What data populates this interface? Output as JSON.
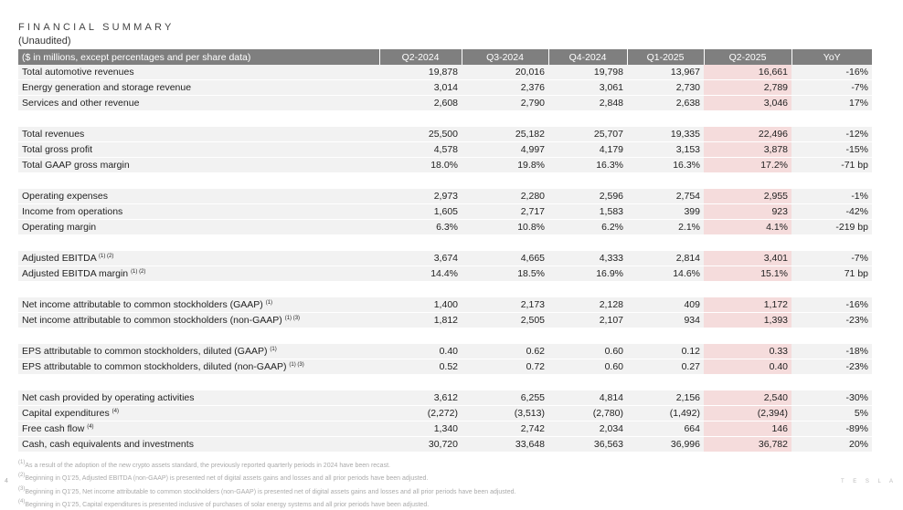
{
  "title": "FINANCIAL SUMMARY",
  "subtitle": "(Unaudited)",
  "headers": [
    "($ in millions, except percentages and per share data)",
    "Q2-2024",
    "Q3-2024",
    "Q4-2024",
    "Q1-2025",
    "Q2-2025",
    "YoY"
  ],
  "groups": [
    [
      {
        "label": "Total automotive revenues",
        "sup": "",
        "v": [
          "19,878",
          "20,016",
          "19,798",
          "13,967",
          "16,661",
          "-16%"
        ]
      },
      {
        "label": "Energy generation and storage revenue",
        "sup": "",
        "v": [
          "3,014",
          "2,376",
          "3,061",
          "2,730",
          "2,789",
          "-7%"
        ]
      },
      {
        "label": "Services and other revenue",
        "sup": "",
        "v": [
          "2,608",
          "2,790",
          "2,848",
          "2,638",
          "3,046",
          "17%"
        ]
      }
    ],
    [
      {
        "label": "Total revenues",
        "sup": "",
        "v": [
          "25,500",
          "25,182",
          "25,707",
          "19,335",
          "22,496",
          "-12%"
        ]
      },
      {
        "label": "Total gross profit",
        "sup": "",
        "v": [
          "4,578",
          "4,997",
          "4,179",
          "3,153",
          "3,878",
          "-15%"
        ]
      },
      {
        "label": "Total GAAP gross margin",
        "sup": "",
        "v": [
          "18.0%",
          "19.8%",
          "16.3%",
          "16.3%",
          "17.2%",
          "-71 bp"
        ]
      }
    ],
    [
      {
        "label": "Operating expenses",
        "sup": "",
        "v": [
          "2,973",
          "2,280",
          "2,596",
          "2,754",
          "2,955",
          "-1%"
        ]
      },
      {
        "label": "Income from operations",
        "sup": "",
        "v": [
          "1,605",
          "2,717",
          "1,583",
          "399",
          "923",
          "-42%"
        ]
      },
      {
        "label": "Operating margin",
        "sup": "",
        "v": [
          "6.3%",
          "10.8%",
          "6.2%",
          "2.1%",
          "4.1%",
          "-219 bp"
        ]
      }
    ],
    [
      {
        "label": "Adjusted EBITDA",
        "sup": "(1) (2)",
        "v": [
          "3,674",
          "4,665",
          "4,333",
          "2,814",
          "3,401",
          "-7%"
        ]
      },
      {
        "label": "Adjusted EBITDA margin",
        "sup": "(1) (2)",
        "v": [
          "14.4%",
          "18.5%",
          "16.9%",
          "14.6%",
          "15.1%",
          "71 bp"
        ]
      }
    ],
    [
      {
        "label": "Net income attributable to common stockholders (GAAP)",
        "sup": "(1)",
        "v": [
          "1,400",
          "2,173",
          "2,128",
          "409",
          "1,172",
          "-16%"
        ]
      },
      {
        "label": "Net income attributable to common stockholders (non-GAAP)",
        "sup": "(1) (3)",
        "v": [
          "1,812",
          "2,505",
          "2,107",
          "934",
          "1,393",
          "-23%"
        ]
      }
    ],
    [
      {
        "label": "EPS attributable to common stockholders, diluted (GAAP)",
        "sup": "(1)",
        "v": [
          "0.40",
          "0.62",
          "0.60",
          "0.12",
          "0.33",
          "-18%"
        ]
      },
      {
        "label": "EPS attributable to common stockholders, diluted (non-GAAP)",
        "sup": "(1) (3)",
        "v": [
          "0.52",
          "0.72",
          "0.60",
          "0.27",
          "0.40",
          "-23%"
        ]
      }
    ],
    [
      {
        "label": "Net cash provided by operating activities",
        "sup": "",
        "v": [
          "3,612",
          "6,255",
          "4,814",
          "2,156",
          "2,540",
          "-30%"
        ]
      },
      {
        "label": "Capital expenditures",
        "sup": "(4)",
        "v": [
          "(2,272)",
          "(3,513)",
          "(2,780)",
          "(1,492)",
          "(2,394)",
          "5%"
        ]
      },
      {
        "label": "Free cash flow",
        "sup": "(4)",
        "v": [
          "1,340",
          "2,742",
          "2,034",
          "664",
          "146",
          "-89%"
        ]
      },
      {
        "label": "Cash, cash equivalents and investments",
        "sup": "",
        "v": [
          "30,720",
          "33,648",
          "36,563",
          "36,996",
          "36,782",
          "20%"
        ]
      }
    ]
  ],
  "footnotes": [
    {
      "n": "(1)",
      "t": "As a result of the adoption of the new crypto assets standard, the previously reported quarterly periods in 2024 have been recast."
    },
    {
      "n": "(2)",
      "t": "Beginning in Q1'25, Adjusted EBITDA (non-GAAP) is presented net of digital assets gains and losses and all prior periods have been adjusted."
    },
    {
      "n": "(3)",
      "t": "Beginning in Q1'25, Net income attributable to common stockholders (non-GAAP) is presented net of digital assets gains and losses and all prior periods have been adjusted."
    },
    {
      "n": "(4)",
      "t": "Beginning in Q1'25, Capital expenditures is presented inclusive of purchases of solar energy systems and all prior periods have been adjusted."
    }
  ],
  "page_number": "4",
  "logo": "TESLA",
  "colors": {
    "header_bg": "#7f7f7f",
    "row_bg": "#f2f2f2",
    "highlight": "#f5dcdc"
  }
}
